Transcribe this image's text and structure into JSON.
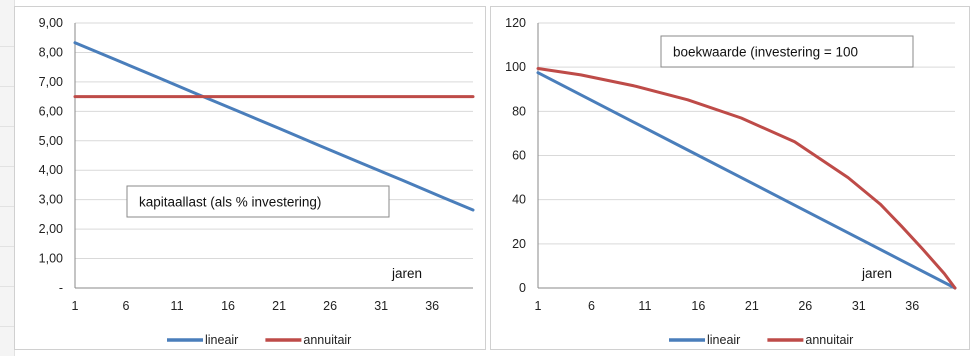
{
  "chart_data": [
    {
      "type": "line",
      "title": "",
      "annotation": "kapitaallast (als % investering)",
      "xlabel": "jaren",
      "ylabel": "",
      "ylim": [
        0,
        9
      ],
      "yticks": [
        "-",
        "1,00",
        "2,00",
        "3,00",
        "4,00",
        "5,00",
        "6,00",
        "7,00",
        "8,00",
        "9,00"
      ],
      "xticks": [
        "1",
        "6",
        "11",
        "16",
        "21",
        "26",
        "31",
        "36"
      ],
      "x_range": [
        1,
        40
      ],
      "grid": true,
      "legend_placement": "bottom",
      "series": [
        {
          "name": "lineair",
          "color": "#4a7ebb",
          "x": [
            1,
            5,
            9,
            13,
            17,
            21,
            25,
            29,
            33,
            37,
            40
          ],
          "values": [
            8.33,
            7.75,
            7.17,
            6.58,
            6.0,
            5.42,
            4.83,
            4.25,
            3.67,
            3.08,
            2.65
          ]
        },
        {
          "name": "annuitair",
          "color": "#be4b48",
          "x": [
            1,
            40
          ],
          "values": [
            6.5,
            6.5
          ]
        }
      ]
    },
    {
      "type": "line",
      "title": "",
      "annotation": "boekwaarde (investering = 100",
      "xlabel": "jaren",
      "ylabel": "",
      "ylim": [
        0,
        120
      ],
      "yticks": [
        "0",
        "20",
        "40",
        "60",
        "80",
        "100",
        "120"
      ],
      "xticks": [
        "1",
        "6",
        "11",
        "16",
        "21",
        "26",
        "31",
        "36"
      ],
      "x_range": [
        1,
        40
      ],
      "grid": true,
      "legend_placement": "bottom",
      "series": [
        {
          "name": "lineair",
          "color": "#4a7ebb",
          "x": [
            1,
            5,
            10,
            15,
            20,
            25,
            30,
            35,
            40
          ],
          "values": [
            97.5,
            87.5,
            75.0,
            62.5,
            50.0,
            37.5,
            25.0,
            12.5,
            0
          ]
        },
        {
          "name": "annuitair",
          "color": "#be4b48",
          "x": [
            1,
            5,
            10,
            15,
            20,
            25,
            30,
            33,
            35,
            37,
            39,
            40
          ],
          "values": [
            99.4,
            96.5,
            91.5,
            85.2,
            77.0,
            66.2,
            50.0,
            38.0,
            28.0,
            17.5,
            6.5,
            0
          ]
        }
      ]
    }
  ]
}
